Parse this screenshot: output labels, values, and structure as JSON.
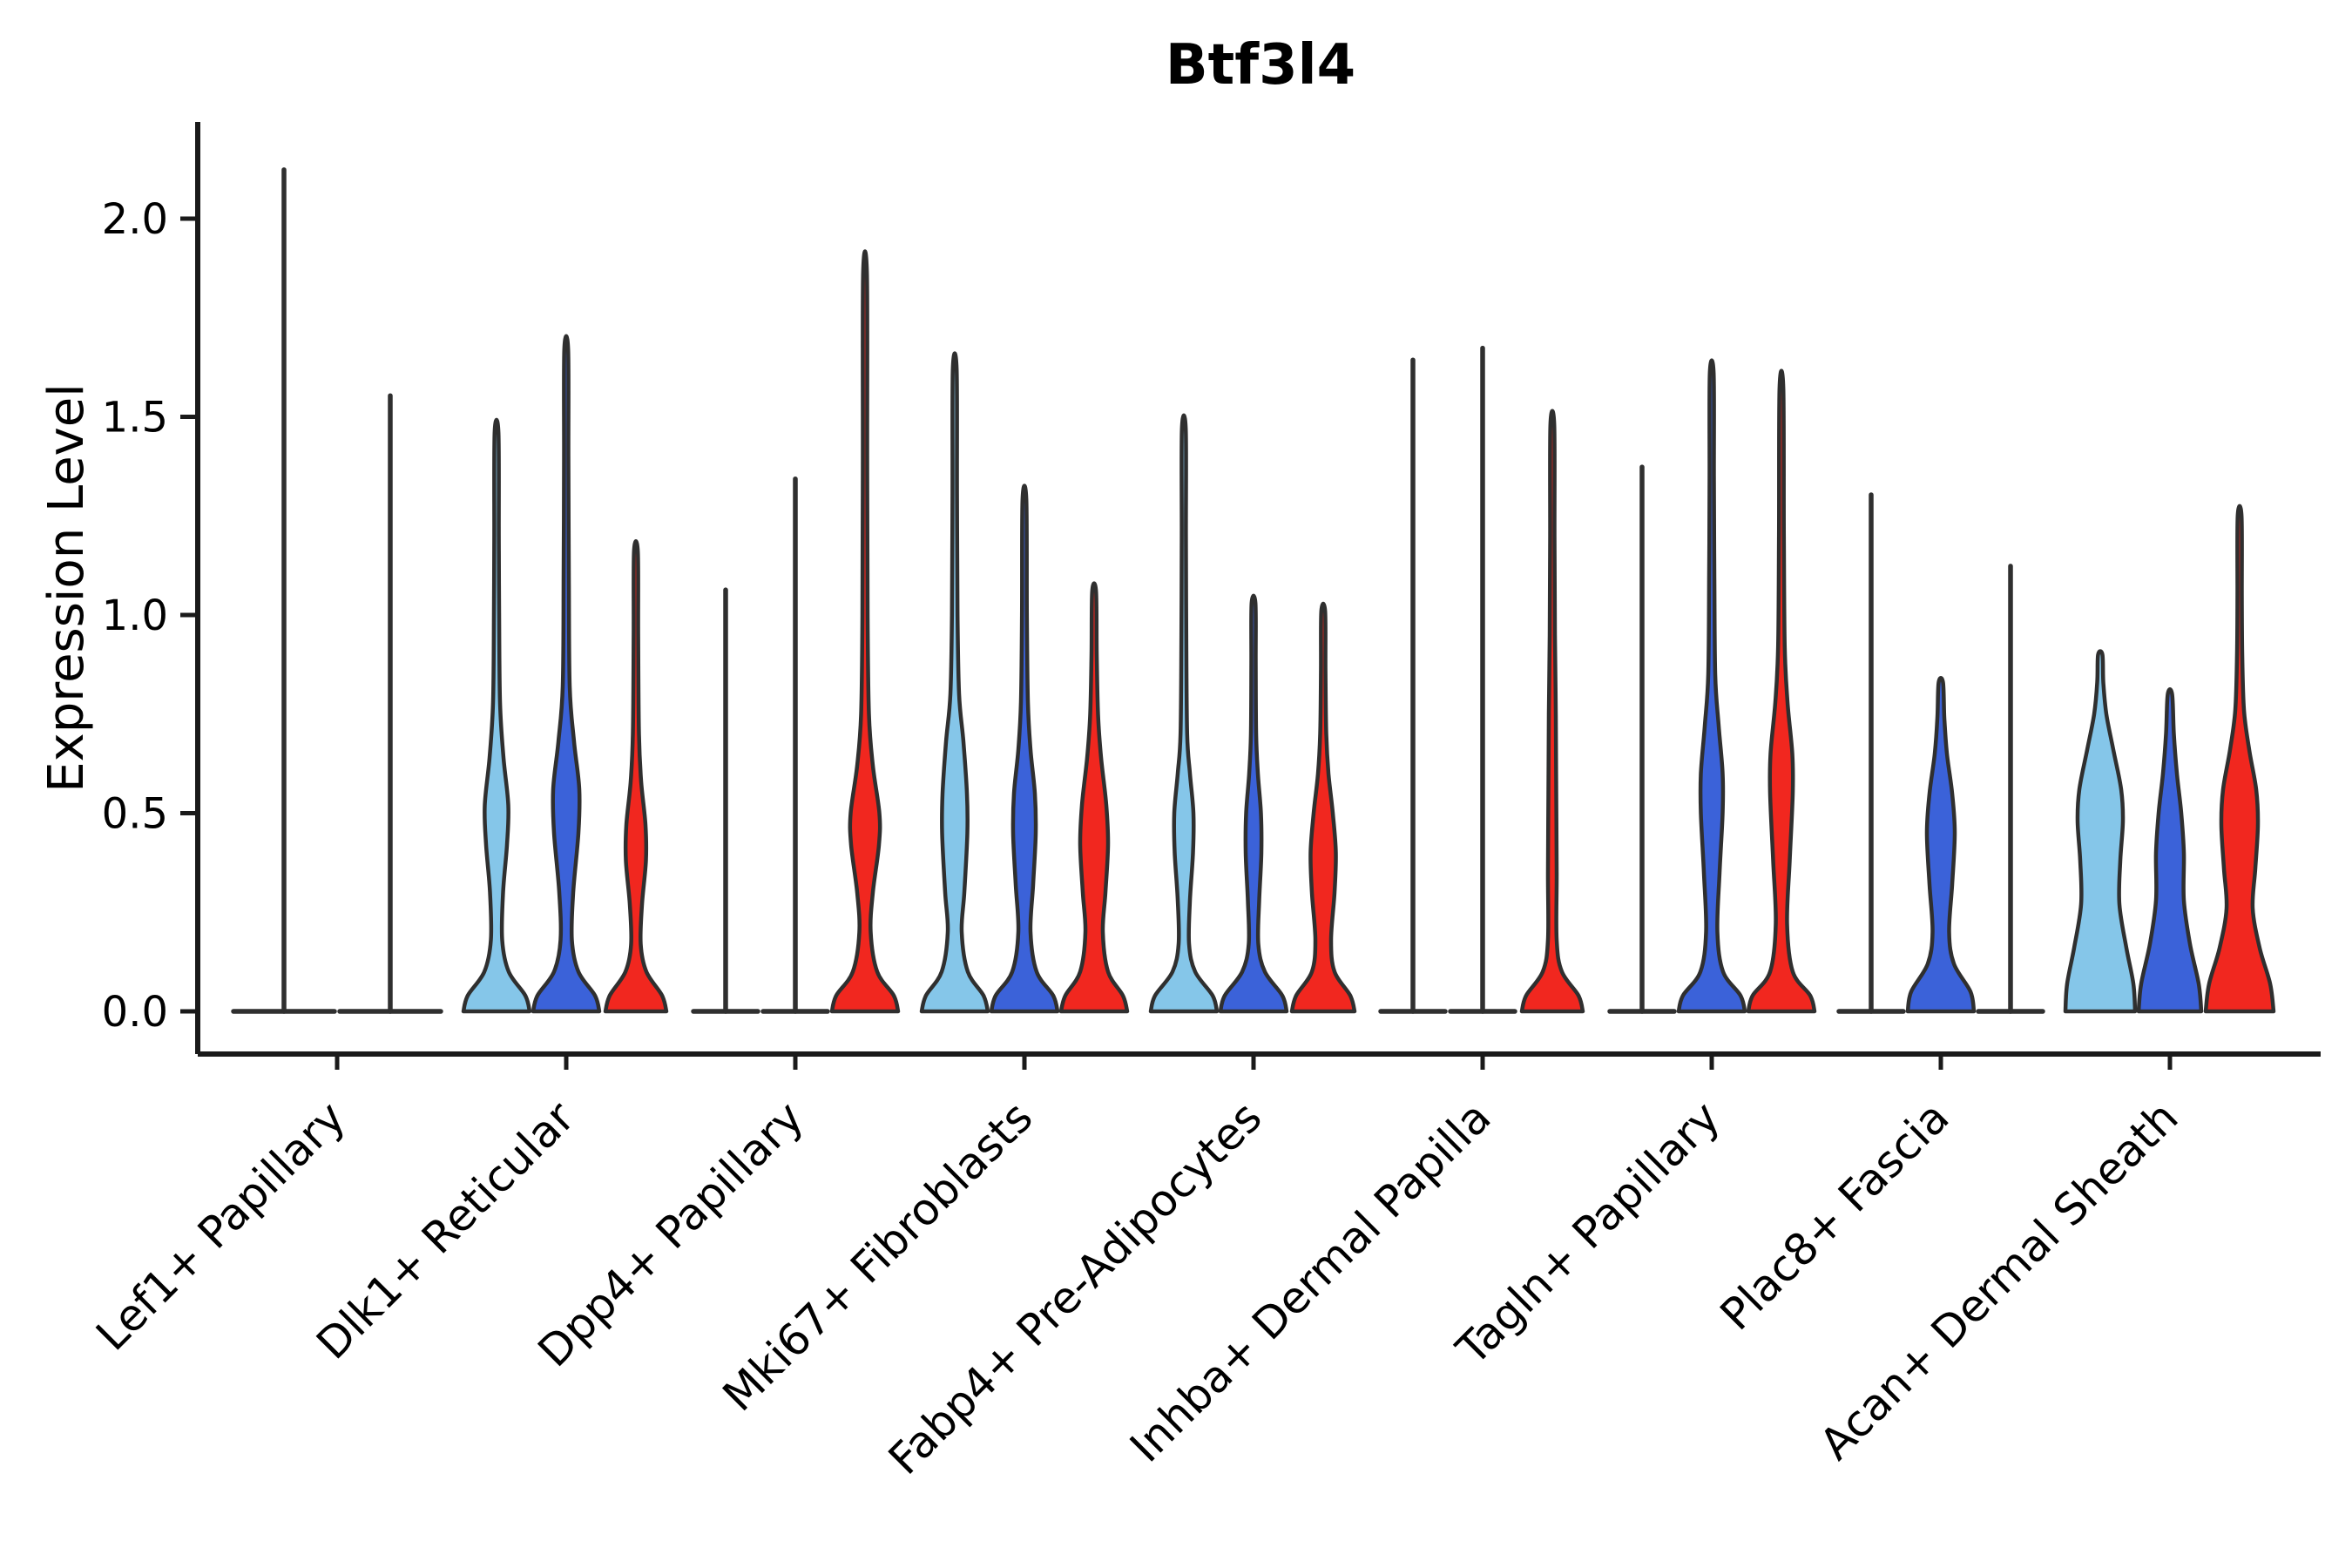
{
  "chart_data": {
    "type": "violin",
    "title": "Btf3l4",
    "ylabel": "Expression Level",
    "xlabel": "",
    "ylim": [
      0,
      2.25
    ],
    "yticks": [
      0.0,
      0.5,
      1.0,
      1.5,
      2.0
    ],
    "grid": false,
    "legend": "none",
    "categories": [
      "Lef1+ Papillary",
      "Dlk1+ Reticular",
      "Dpp4+ Papillary",
      "Mki67+ Fibroblasts",
      "Fabp4+ Pre-Adipocytes",
      "Inhba+ Dermal Papilla",
      "Tagln+ Papillary",
      "Plac8+ Fascia",
      "Acan+ Dermal Sheath"
    ],
    "series_colors": [
      "#85C6E9",
      "#3B62D9",
      "#F1271F"
    ],
    "outline_color": "#2F2F2F",
    "axis_color": "#1A1A1A",
    "groups": [
      {
        "category": "Lef1+ Papillary",
        "violins": [
          {
            "sample": 0,
            "kind": "spike",
            "max": 2.13,
            "offset": -61,
            "flat_width": 122
          },
          {
            "sample": 1,
            "kind": "spike",
            "max": 1.56,
            "offset": 61,
            "flat_width": 122
          }
        ]
      },
      {
        "category": "Dlk1+ Reticular",
        "violins": [
          {
            "sample": 0,
            "kind": "violin",
            "max": 1.46,
            "offset": -80,
            "profile": [
              [
                0,
                38
              ],
              [
                0.04,
                33
              ],
              [
                0.1,
                14
              ],
              [
                0.18,
                6.5
              ],
              [
                0.3,
                7.5
              ],
              [
                0.42,
                12
              ],
              [
                0.52,
                13.5
              ],
              [
                0.64,
                8
              ],
              [
                0.78,
                4
              ],
              [
                1.0,
                3
              ],
              [
                1.2,
                2.6
              ],
              [
                1.46,
                2.2
              ]
            ]
          },
          {
            "sample": 1,
            "kind": "violin",
            "max": 1.67,
            "offset": 0,
            "profile": [
              [
                0,
                38
              ],
              [
                0.04,
                33
              ],
              [
                0.1,
                14
              ],
              [
                0.18,
                6.5
              ],
              [
                0.3,
                8
              ],
              [
                0.45,
                14
              ],
              [
                0.56,
                15
              ],
              [
                0.68,
                9
              ],
              [
                0.82,
                4
              ],
              [
                1.1,
                3
              ],
              [
                1.4,
                2.5
              ],
              [
                1.67,
                2.2
              ]
            ]
          },
          {
            "sample": 2,
            "kind": "violin",
            "max": 1.16,
            "offset": 80,
            "profile": [
              [
                0,
                35
              ],
              [
                0.04,
                30
              ],
              [
                0.1,
                12
              ],
              [
                0.17,
                5.5
              ],
              [
                0.27,
                7
              ],
              [
                0.38,
                11.5
              ],
              [
                0.47,
                11
              ],
              [
                0.58,
                6
              ],
              [
                0.7,
                3.5
              ],
              [
                0.95,
                2.6
              ],
              [
                1.16,
                2.2
              ]
            ]
          }
        ]
      },
      {
        "category": "Dpp4+ Papillary",
        "violins": [
          {
            "sample": 0,
            "kind": "spike",
            "max": 1.07,
            "offset": -80,
            "flat_width": 80
          },
          {
            "sample": 1,
            "kind": "spike",
            "max": 1.35,
            "offset": 0,
            "flat_width": 80
          },
          {
            "sample": 2,
            "kind": "violin",
            "max": 1.86,
            "offset": 80,
            "profile": [
              [
                0,
                38
              ],
              [
                0.04,
                33
              ],
              [
                0.1,
                14
              ],
              [
                0.2,
                6.5
              ],
              [
                0.3,
                9
              ],
              [
                0.42,
                16
              ],
              [
                0.5,
                16.5
              ],
              [
                0.62,
                9
              ],
              [
                0.75,
                4.5
              ],
              [
                1.0,
                3
              ],
              [
                1.4,
                2.5
              ],
              [
                1.86,
                2.2
              ]
            ]
          }
        ]
      },
      {
        "category": "Mki67+ Fibroblasts",
        "violins": [
          {
            "sample": 0,
            "kind": "violin",
            "max": 1.62,
            "offset": -80,
            "profile": [
              [
                0,
                38
              ],
              [
                0.04,
                33
              ],
              [
                0.1,
                15
              ],
              [
                0.2,
                8
              ],
              [
                0.3,
                11
              ],
              [
                0.45,
                14.5
              ],
              [
                0.55,
                14
              ],
              [
                0.68,
                10
              ],
              [
                0.8,
                5
              ],
              [
                1.0,
                3.2
              ],
              [
                1.3,
                2.6
              ],
              [
                1.62,
                2.2
              ]
            ]
          },
          {
            "sample": 1,
            "kind": "violin",
            "max": 1.29,
            "offset": 0,
            "profile": [
              [
                0,
                38
              ],
              [
                0.04,
                33
              ],
              [
                0.1,
                14
              ],
              [
                0.2,
                7
              ],
              [
                0.32,
                10
              ],
              [
                0.45,
                13
              ],
              [
                0.55,
                12
              ],
              [
                0.66,
                7
              ],
              [
                0.78,
                4
              ],
              [
                1.0,
                2.8
              ],
              [
                1.29,
                2.2
              ]
            ]
          },
          {
            "sample": 2,
            "kind": "violin",
            "max": 1.06,
            "offset": 80,
            "profile": [
              [
                0,
                38
              ],
              [
                0.04,
                33
              ],
              [
                0.1,
                16
              ],
              [
                0.2,
                10
              ],
              [
                0.3,
                13
              ],
              [
                0.42,
                16
              ],
              [
                0.52,
                14
              ],
              [
                0.64,
                8
              ],
              [
                0.75,
                4.5
              ],
              [
                0.9,
                3
              ],
              [
                1.06,
                2.2
              ]
            ]
          }
        ]
      },
      {
        "category": "Fabp4+ Pre-Adipocytes",
        "violins": [
          {
            "sample": 0,
            "kind": "violin",
            "max": 1.47,
            "offset": -80,
            "profile": [
              [
                0,
                38
              ],
              [
                0.04,
                33
              ],
              [
                0.1,
                13
              ],
              [
                0.17,
                6
              ],
              [
                0.28,
                7
              ],
              [
                0.4,
                10.5
              ],
              [
                0.5,
                11
              ],
              [
                0.6,
                7
              ],
              [
                0.7,
                3.8
              ],
              [
                0.95,
                2.8
              ],
              [
                1.2,
                2.4
              ],
              [
                1.47,
                2.2
              ]
            ]
          },
          {
            "sample": 1,
            "kind": "violin",
            "max": 1.03,
            "offset": 0,
            "profile": [
              [
                0,
                38
              ],
              [
                0.04,
                33
              ],
              [
                0.1,
                13
              ],
              [
                0.17,
                5.5
              ],
              [
                0.28,
                6.5
              ],
              [
                0.4,
                9
              ],
              [
                0.5,
                8.5
              ],
              [
                0.6,
                5
              ],
              [
                0.7,
                3
              ],
              [
                0.88,
                2.5
              ],
              [
                1.03,
                2.2
              ]
            ]
          },
          {
            "sample": 2,
            "kind": "violin",
            "max": 1.01,
            "offset": 80,
            "profile": [
              [
                0,
                36
              ],
              [
                0.04,
                31
              ],
              [
                0.1,
                13
              ],
              [
                0.18,
                9
              ],
              [
                0.3,
                13
              ],
              [
                0.4,
                14.5
              ],
              [
                0.5,
                11
              ],
              [
                0.6,
                6
              ],
              [
                0.7,
                3.5
              ],
              [
                0.86,
                2.6
              ],
              [
                1.01,
                2.2
              ]
            ]
          }
        ]
      },
      {
        "category": "Inhba+ Dermal Papilla",
        "violins": [
          {
            "sample": 0,
            "kind": "spike",
            "max": 1.65,
            "offset": -80,
            "flat_width": 80
          },
          {
            "sample": 1,
            "kind": "spike",
            "max": 1.68,
            "offset": 0,
            "flat_width": 80
          },
          {
            "sample": 2,
            "kind": "violin",
            "max": 1.48,
            "offset": 80,
            "profile": [
              [
                0,
                35
              ],
              [
                0.04,
                30
              ],
              [
                0.1,
                11
              ],
              [
                0.18,
                5
              ],
              [
                0.35,
                5
              ],
              [
                0.55,
                4.5
              ],
              [
                0.75,
                4
              ],
              [
                0.95,
                3
              ],
              [
                1.2,
                2.5
              ],
              [
                1.48,
                2.2
              ]
            ]
          }
        ]
      },
      {
        "category": "Tagln+ Papillary",
        "violins": [
          {
            "sample": 0,
            "kind": "spike",
            "max": 1.38,
            "offset": -80,
            "flat_width": 80
          },
          {
            "sample": 1,
            "kind": "violin",
            "max": 1.61,
            "offset": 0,
            "profile": [
              [
                0,
                38
              ],
              [
                0.04,
                33
              ],
              [
                0.1,
                13
              ],
              [
                0.2,
                6.5
              ],
              [
                0.35,
                9
              ],
              [
                0.5,
                12.5
              ],
              [
                0.6,
                12.5
              ],
              [
                0.72,
                8
              ],
              [
                0.85,
                4
              ],
              [
                1.1,
                3
              ],
              [
                1.35,
                2.5
              ],
              [
                1.61,
                2.2
              ]
            ]
          },
          {
            "sample": 2,
            "kind": "violin",
            "max": 1.57,
            "offset": 80,
            "profile": [
              [
                0,
                38
              ],
              [
                0.04,
                33
              ],
              [
                0.1,
                13
              ],
              [
                0.22,
                6.5
              ],
              [
                0.38,
                9.5
              ],
              [
                0.55,
                13
              ],
              [
                0.65,
                12.5
              ],
              [
                0.78,
                7
              ],
              [
                0.92,
                3.8
              ],
              [
                1.2,
                2.8
              ],
              [
                1.57,
                2.2
              ]
            ]
          }
        ]
      },
      {
        "category": "Plac8+ Fascia",
        "violins": [
          {
            "sample": 0,
            "kind": "spike",
            "max": 1.31,
            "offset": -80,
            "flat_width": 80
          },
          {
            "sample": 1,
            "kind": "violin",
            "max": 0.83,
            "offset": 0,
            "profile": [
              [
                0,
                38
              ],
              [
                0.05,
                34
              ],
              [
                0.12,
                15
              ],
              [
                0.2,
                9.5
              ],
              [
                0.32,
                13
              ],
              [
                0.45,
                16
              ],
              [
                0.55,
                13
              ],
              [
                0.65,
                7
              ],
              [
                0.74,
                4
              ],
              [
                0.83,
                2.5
              ]
            ]
          },
          {
            "sample": 2,
            "kind": "spike",
            "max": 1.13,
            "offset": 80,
            "flat_width": 80
          }
        ]
      },
      {
        "category": "Acan+ Dermal Sheath",
        "violins": [
          {
            "sample": 0,
            "kind": "violin",
            "max": 0.9,
            "offset": -80,
            "profile": [
              [
                0,
                40
              ],
              [
                0.07,
                38
              ],
              [
                0.16,
                30
              ],
              [
                0.27,
                22
              ],
              [
                0.38,
                23
              ],
              [
                0.48,
                26
              ],
              [
                0.56,
                24
              ],
              [
                0.66,
                15
              ],
              [
                0.75,
                7
              ],
              [
                0.83,
                3.5
              ],
              [
                0.9,
                2.5
              ]
            ]
          },
          {
            "sample": 1,
            "kind": "violin",
            "max": 0.8,
            "offset": 0,
            "profile": [
              [
                0,
                36
              ],
              [
                0.07,
                33
              ],
              [
                0.17,
                23
              ],
              [
                0.28,
                16
              ],
              [
                0.4,
                16
              ],
              [
                0.5,
                13
              ],
              [
                0.6,
                8
              ],
              [
                0.7,
                4.5
              ],
              [
                0.8,
                2.5
              ]
            ]
          },
          {
            "sample": 2,
            "kind": "violin",
            "max": 1.25,
            "offset": 80,
            "profile": [
              [
                0,
                39
              ],
              [
                0.07,
                35
              ],
              [
                0.16,
                23
              ],
              [
                0.26,
                15
              ],
              [
                0.36,
                18
              ],
              [
                0.47,
                21
              ],
              [
                0.56,
                19
              ],
              [
                0.66,
                11
              ],
              [
                0.76,
                5
              ],
              [
                0.9,
                3
              ],
              [
                1.05,
                2.5
              ],
              [
                1.25,
                2.2
              ]
            ]
          }
        ]
      }
    ]
  }
}
